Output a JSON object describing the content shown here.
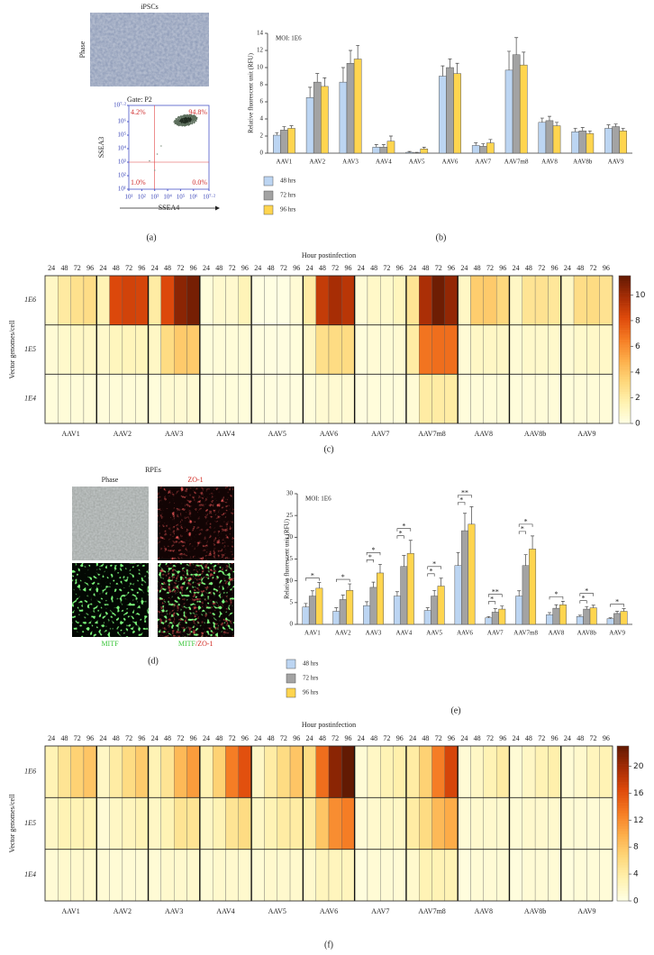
{
  "panel_a": {
    "label": "(a)",
    "title": "iPSCs",
    "image_label": "Phase",
    "flow": {
      "gate": "Gate: P2",
      "xlabel": "SSEA4",
      "ylabel": "SSEA3",
      "quadrants": [
        "4.2%",
        "94.8%",
        "1.0%",
        "0.0%"
      ],
      "lim": [
        1,
        7.2
      ],
      "ticks": [
        {
          "value": 1,
          "label": "10¹"
        },
        {
          "value": 2,
          "label": "10²"
        },
        {
          "value": 3,
          "label": "10³"
        },
        {
          "value": 4,
          "label": "10⁴"
        },
        {
          "value": 5,
          "label": "10⁵"
        },
        {
          "value": 6,
          "label": "10⁶"
        },
        {
          "value": 7.2,
          "label": "10⁷·²"
        }
      ],
      "gate_line": 3
    }
  },
  "panel_d": {
    "label": "(d)",
    "title": "RPEs",
    "images": [
      "Phase",
      "ZO-1",
      "MITF"
    ],
    "merge": [
      "MITF",
      "/ZO-1"
    ]
  },
  "chart_data": [
    {
      "type": "bar",
      "label": "(b)",
      "annotation": "MOI: 1E6",
      "ylabel": "Relative fluorescent unit (RFU)",
      "categories": [
        "AAV1",
        "AAV2",
        "AAV3",
        "AAV4",
        "AAV5",
        "AAV6",
        "AAV7",
        "AAV7m8",
        "AAV8",
        "AAV8b",
        "AAV9"
      ],
      "series": [
        {
          "name": "48 hrs",
          "color": "#bcd5f2",
          "values": [
            2.1,
            6.5,
            8.3,
            0.7,
            0.1,
            9,
            0.9,
            9.7,
            3.6,
            2.5,
            2.9
          ],
          "errors": [
            0.3,
            1.2,
            1.7,
            0.3,
            0.1,
            1.2,
            0.3,
            2.2,
            0.5,
            0.4,
            0.4
          ]
        },
        {
          "name": "72 hrs",
          "color": "#a3a3a3",
          "values": [
            2.7,
            8.3,
            10.5,
            0.7,
            0.05,
            10,
            0.8,
            11.5,
            3.8,
            2.6,
            3.1
          ],
          "errors": [
            0.4,
            1,
            1.5,
            0.3,
            0.05,
            1,
            0.3,
            2,
            0.5,
            0.4,
            0.3
          ]
        },
        {
          "name": "96 hrs",
          "color": "#ffd54f",
          "values": [
            2.9,
            7.8,
            11,
            1.4,
            0.5,
            9.3,
            1.2,
            10.3,
            3.2,
            2.3,
            2.6
          ],
          "errors": [
            0.3,
            1,
            1.6,
            0.6,
            0.2,
            1.2,
            0.4,
            1.5,
            0.4,
            0.3,
            0.3
          ]
        }
      ],
      "ylim": [
        0,
        14
      ],
      "yticks": [
        0,
        2,
        4,
        6,
        8,
        10,
        12,
        14
      ]
    },
    {
      "type": "heatmap",
      "label": "(c)",
      "title": "Hour postinfection",
      "ylabel": "Vector genomes/cell",
      "groups": [
        "AAV1",
        "AAV2",
        "AAV3",
        "AAV4",
        "AAV5",
        "AAV6",
        "AAV7",
        "AAV7m8",
        "AAV8",
        "AAV8b",
        "AAV9"
      ],
      "hours": [
        24,
        48,
        72,
        96
      ],
      "rows": [
        "1E6",
        "1E5",
        "1E4"
      ],
      "values": [
        [
          1,
          2.1,
          2.7,
          2.9,
          1.5,
          8.3,
          8.6,
          8.5,
          2,
          8.3,
          10.5,
          11,
          0.3,
          0.7,
          0.7,
          1.4,
          0.1,
          0.1,
          0.1,
          0.5,
          2,
          9,
          9.8,
          9.3,
          0.5,
          0.9,
          0.8,
          1.2,
          2.5,
          9.7,
          11.2,
          10.3,
          1,
          3.7,
          3.8,
          3.2,
          1,
          2.5,
          2.6,
          2.3,
          1,
          2.9,
          3,
          2.6
        ],
        [
          0.5,
          0.8,
          1,
          1,
          0.8,
          1.2,
          1.3,
          1.3,
          1,
          3,
          3.8,
          3.8,
          0.3,
          0.4,
          0.4,
          0.5,
          0.2,
          0.2,
          0.2,
          0.3,
          1,
          2.8,
          3,
          3,
          0.3,
          0.5,
          0.5,
          0.6,
          2,
          6.8,
          7,
          7,
          0.5,
          1,
          1,
          1,
          0.5,
          0.8,
          0.8,
          0.8,
          0.5,
          0.8,
          0.9,
          0.9
        ],
        [
          0.3,
          0.4,
          0.4,
          0.4,
          0.3,
          0.4,
          0.4,
          0.4,
          0.3,
          0.6,
          0.6,
          0.6,
          0.2,
          0.3,
          0.3,
          0.3,
          0.2,
          0.2,
          0.2,
          0.2,
          0.3,
          0.6,
          0.6,
          0.6,
          0.2,
          0.3,
          0.3,
          0.3,
          0.5,
          2,
          2,
          2,
          0.3,
          0.4,
          0.4,
          0.4,
          0.3,
          0.4,
          0.4,
          0.4,
          0.3,
          0.4,
          0.4,
          0.4
        ]
      ],
      "zlim": [
        0,
        11.5
      ],
      "zticks": [
        0,
        2,
        4,
        6,
        8,
        10
      ],
      "colormap": [
        "#ffffe5",
        "#fff2b0",
        "#fed77a",
        "#fdae4a",
        "#f57b23",
        "#df4a0b",
        "#a52c05",
        "#621a03"
      ]
    },
    {
      "type": "bar",
      "label": "(e)",
      "annotation": "MOI: 1E6",
      "ylabel": "Relative fluorescent unit (RFU)",
      "categories": [
        "AAV1",
        "AAV2",
        "AAV3",
        "AAV4",
        "AAV5",
        "AAV6",
        "AAV7",
        "AAV7m8",
        "AAV8",
        "AAV8b",
        "AAV9"
      ],
      "series": [
        {
          "name": "48 hrs",
          "color": "#bcd5f2",
          "values": [
            4,
            3,
            4.3,
            6.5,
            3.2,
            13.5,
            1.5,
            6.5,
            2.2,
            1.8,
            1.3
          ],
          "errors": [
            0.8,
            0.8,
            0.9,
            1,
            0.6,
            3,
            0.3,
            1.2,
            0.5,
            0.3,
            0.2
          ]
        },
        {
          "name": "72 hrs",
          "color": "#a3a3a3",
          "values": [
            6.5,
            5.7,
            8.5,
            13.3,
            6.5,
            21.5,
            2.8,
            13.5,
            3.7,
            3.5,
            2.5
          ],
          "errors": [
            1.2,
            1,
            1.2,
            2.5,
            1.3,
            4,
            0.8,
            2.5,
            0.8,
            0.6,
            0.5
          ]
        },
        {
          "name": "96 hrs",
          "color": "#ffd54f",
          "values": [
            8.3,
            7.8,
            11.8,
            16.3,
            8.8,
            23,
            3.5,
            17.3,
            4.5,
            3.8,
            3
          ],
          "errors": [
            1.3,
            1.5,
            2,
            3,
            1.8,
            4,
            0.7,
            3,
            0.8,
            0.6,
            0.6
          ]
        }
      ],
      "ylim": [
        0,
        30
      ],
      "yticks": [
        0,
        5,
        10,
        15,
        20,
        25,
        30
      ],
      "significance": [
        {
          "category": "AAV1",
          "from": "48 hrs",
          "to": "96 hrs",
          "text": "*"
        },
        {
          "category": "AAV2",
          "from": "48 hrs",
          "to": "96 hrs",
          "text": "*"
        },
        {
          "category": "AAV3",
          "from": "48 hrs",
          "to": "72 hrs",
          "text": "*"
        },
        {
          "category": "AAV3",
          "from": "48 hrs",
          "to": "96 hrs",
          "text": "*"
        },
        {
          "category": "AAV4",
          "from": "48 hrs",
          "to": "72 hrs",
          "text": "*"
        },
        {
          "category": "AAV4",
          "from": "48 hrs",
          "to": "96 hrs",
          "text": "*"
        },
        {
          "category": "AAV5",
          "from": "48 hrs",
          "to": "72 hrs",
          "text": "*"
        },
        {
          "category": "AAV5",
          "from": "48 hrs",
          "to": "96 hrs",
          "text": "*"
        },
        {
          "category": "AAV6",
          "from": "48 hrs",
          "to": "72 hrs",
          "text": "*"
        },
        {
          "category": "AAV6",
          "from": "48 hrs",
          "to": "96 hrs",
          "text": "**"
        },
        {
          "category": "AAV7",
          "from": "48 hrs",
          "to": "72 hrs",
          "text": "*"
        },
        {
          "category": "AAV7",
          "from": "48 hrs",
          "to": "96 hrs",
          "text": "**"
        },
        {
          "category": "AAV7m8",
          "from": "48 hrs",
          "to": "72 hrs",
          "text": "*"
        },
        {
          "category": "AAV7m8",
          "from": "48 hrs",
          "to": "96 hrs",
          "text": "*"
        },
        {
          "category": "AAV8",
          "from": "48 hrs",
          "to": "96 hrs",
          "text": "*"
        },
        {
          "category": "AAV8b",
          "from": "48 hrs",
          "to": "72 hrs",
          "text": "*"
        },
        {
          "category": "AAV8b",
          "from": "48 hrs",
          "to": "96 hrs",
          "text": "*"
        },
        {
          "category": "AAV9",
          "from": "48 hrs",
          "to": "96 hrs",
          "text": "*"
        }
      ]
    },
    {
      "type": "heatmap",
      "label": "(f)",
      "title": "Hour postinfection",
      "ylabel": "Vector genomes/cell",
      "groups": [
        "AAV1",
        "AAV2",
        "AAV3",
        "AAV4",
        "AAV5",
        "AAV6",
        "AAV7",
        "AAV7m8",
        "AAV8",
        "AAV8b",
        "AAV9"
      ],
      "hours": [
        24,
        48,
        72,
        96
      ],
      "rows": [
        "1E6",
        "1E5",
        "1E4"
      ],
      "values": [
        [
          3,
          5,
          7,
          8,
          2,
          4,
          6,
          7.5,
          3,
          5,
          9,
          11,
          3,
          7,
          13,
          16,
          2,
          4,
          6,
          8,
          6,
          14,
          21,
          23,
          1,
          2,
          3,
          3.5,
          4,
          7,
          13,
          17,
          1,
          2,
          3,
          4,
          1,
          2,
          3,
          3.5,
          1,
          1.5,
          2.5,
          3
        ],
        [
          2,
          3,
          3,
          3,
          1,
          2,
          2.5,
          3,
          2,
          3,
          5,
          5,
          2,
          3,
          5,
          6,
          2,
          3,
          4,
          4,
          4,
          8,
          12,
          13,
          1,
          1.5,
          2,
          2,
          4,
          6,
          9,
          10,
          1,
          1.5,
          1.5,
          1.5,
          1,
          1.5,
          1.5,
          1.5,
          1,
          1,
          1,
          1.2
        ],
        [
          1,
          1.5,
          1.5,
          1.5,
          1,
          1,
          1,
          1,
          1,
          1.5,
          1.5,
          1.5,
          1,
          1.5,
          1.5,
          1.5,
          1,
          1.5,
          1.5,
          1.5,
          1.5,
          2.5,
          2.5,
          2.5,
          0.5,
          1,
          1,
          1,
          1.5,
          3,
          3,
          3,
          0.5,
          1,
          1,
          1,
          0.5,
          1,
          1,
          1,
          0.5,
          0.8,
          0.8,
          0.8
        ]
      ],
      "zlim": [
        0,
        23
      ],
      "zticks": [
        0,
        4,
        8,
        12,
        16,
        20
      ],
      "colormap": [
        "#ffffe5",
        "#fff2b0",
        "#fed77a",
        "#fdae4a",
        "#f57b23",
        "#df4a0b",
        "#a52c05",
        "#621a03"
      ]
    }
  ]
}
